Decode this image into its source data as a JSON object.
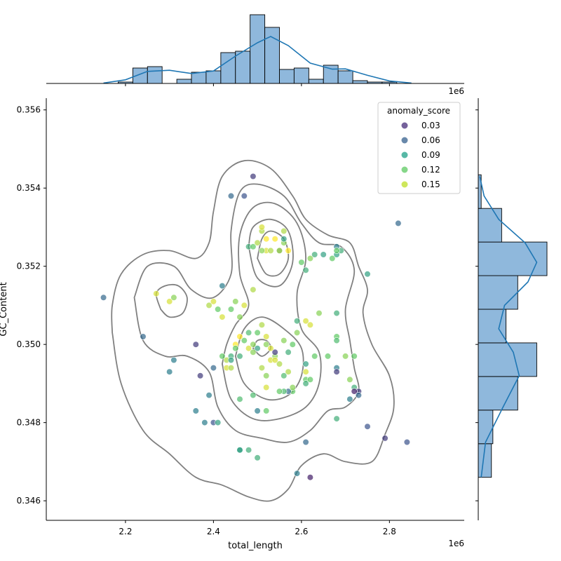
{
  "chart_data": {
    "type": "scatter",
    "title": "",
    "xlabel": "total_length",
    "ylabel": "GC_Content",
    "x_offset_label": "1e6",
    "xlim": [
      2.02,
      2.97
    ],
    "ylim": [
      0.3455,
      0.3563
    ],
    "x_ticks": [
      2.2,
      2.4,
      2.6,
      2.8
    ],
    "x_tick_labels": [
      "2.2",
      "2.4",
      "2.6",
      "2.8"
    ],
    "y_ticks": [
      0.346,
      0.348,
      0.35,
      0.352,
      0.354,
      0.356
    ],
    "y_tick_labels": [
      "0.346",
      "0.348",
      "0.350",
      "0.352",
      "0.354",
      "0.356"
    ],
    "legend": {
      "title": "anomaly_score",
      "position": "top-right",
      "entries": [
        {
          "label": "0.03",
          "color": "#472c7a"
        },
        {
          "label": "0.06",
          "color": "#35608d"
        },
        {
          "label": "0.09",
          "color": "#1fa088"
        },
        {
          "label": "0.12",
          "color": "#5ec962"
        },
        {
          "label": "0.15",
          "color": "#bddf26"
        }
      ]
    },
    "points": [
      [
        2.15,
        0.3512,
        0.06
      ],
      [
        2.27,
        0.3513,
        0.15
      ],
      [
        2.3,
        0.3511,
        0.15
      ],
      [
        2.31,
        0.3512,
        0.13
      ],
      [
        2.24,
        0.3502,
        0.06
      ],
      [
        2.31,
        0.3496,
        0.07
      ],
      [
        2.3,
        0.3493,
        0.07
      ],
      [
        2.36,
        0.35,
        0.04
      ],
      [
        2.37,
        0.3492,
        0.04
      ],
      [
        2.39,
        0.3487,
        0.07
      ],
      [
        2.4,
        0.3494,
        0.06
      ],
      [
        2.36,
        0.3483,
        0.07
      ],
      [
        2.38,
        0.348,
        0.07
      ],
      [
        2.4,
        0.348,
        0.05
      ],
      [
        2.41,
        0.348,
        0.09
      ],
      [
        2.44,
        0.3538,
        0.06
      ],
      [
        2.47,
        0.3538,
        0.05
      ],
      [
        2.49,
        0.3543,
        0.04
      ],
      [
        2.42,
        0.3515,
        0.07
      ],
      [
        2.44,
        0.3509,
        0.12
      ],
      [
        2.41,
        0.3509,
        0.12
      ],
      [
        2.39,
        0.351,
        0.14
      ],
      [
        2.4,
        0.3511,
        0.15
      ],
      [
        2.42,
        0.3507,
        0.15
      ],
      [
        2.45,
        0.3511,
        0.13
      ],
      [
        2.46,
        0.3507,
        0.13
      ],
      [
        2.47,
        0.351,
        0.15
      ],
      [
        2.49,
        0.3514,
        0.14
      ],
      [
        2.48,
        0.3525,
        0.1
      ],
      [
        2.49,
        0.3525,
        0.12
      ],
      [
        2.5,
        0.3526,
        0.14
      ],
      [
        2.51,
        0.3529,
        0.14
      ],
      [
        2.51,
        0.353,
        0.15
      ],
      [
        2.52,
        0.3527,
        0.16
      ],
      [
        2.52,
        0.3524,
        0.15
      ],
      [
        2.53,
        0.3524,
        0.14
      ],
      [
        2.54,
        0.3527,
        0.16
      ],
      [
        2.55,
        0.3524,
        0.07
      ],
      [
        2.55,
        0.3524,
        0.14
      ],
      [
        2.56,
        0.3526,
        0.13
      ],
      [
        2.56,
        0.3529,
        0.14
      ],
      [
        2.56,
        0.3527,
        0.09
      ],
      [
        2.57,
        0.3524,
        0.16
      ],
      [
        2.51,
        0.3524,
        0.13
      ],
      [
        2.6,
        0.3521,
        0.12
      ],
      [
        2.61,
        0.3519,
        0.1
      ],
      [
        2.62,
        0.3522,
        0.13
      ],
      [
        2.63,
        0.3523,
        0.1
      ],
      [
        2.65,
        0.3523,
        0.09
      ],
      [
        2.67,
        0.3522,
        0.12
      ],
      [
        2.68,
        0.3523,
        0.09
      ],
      [
        2.68,
        0.3525,
        0.07
      ],
      [
        2.69,
        0.3524,
        0.1
      ],
      [
        2.68,
        0.3524,
        0.12
      ],
      [
        2.75,
        0.3518,
        0.09
      ],
      [
        2.82,
        0.3531,
        0.06
      ],
      [
        2.64,
        0.3508,
        0.13
      ],
      [
        2.68,
        0.3508,
        0.1
      ],
      [
        2.62,
        0.3505,
        0.15
      ],
      [
        2.68,
        0.3502,
        0.12
      ],
      [
        2.68,
        0.3501,
        0.11
      ],
      [
        2.7,
        0.3497,
        0.13
      ],
      [
        2.66,
        0.3497,
        0.12
      ],
      [
        2.63,
        0.3497,
        0.12
      ],
      [
        2.61,
        0.3495,
        0.09
      ],
      [
        2.61,
        0.3491,
        0.12
      ],
      [
        2.61,
        0.3493,
        0.15
      ],
      [
        2.62,
        0.3491,
        0.12
      ],
      [
        2.61,
        0.349,
        0.1
      ],
      [
        2.57,
        0.3498,
        0.1
      ],
      [
        2.57,
        0.3493,
        0.14
      ],
      [
        2.58,
        0.3488,
        0.12
      ],
      [
        2.57,
        0.3488,
        0.06
      ],
      [
        2.56,
        0.3488,
        0.11
      ],
      [
        2.56,
        0.3492,
        0.11
      ],
      [
        2.55,
        0.3495,
        0.14
      ],
      [
        2.54,
        0.3497,
        0.13
      ],
      [
        2.54,
        0.3498,
        0.04
      ],
      [
        2.53,
        0.3499,
        0.15
      ],
      [
        2.52,
        0.35,
        0.13
      ],
      [
        2.52,
        0.3502,
        0.15
      ],
      [
        2.51,
        0.3505,
        0.14
      ],
      [
        2.5,
        0.3503,
        0.12
      ],
      [
        2.49,
        0.35,
        0.13
      ],
      [
        2.48,
        0.3503,
        0.11
      ],
      [
        2.47,
        0.3501,
        0.12
      ],
      [
        2.46,
        0.3502,
        0.16
      ],
      [
        2.45,
        0.35,
        0.16
      ],
      [
        2.44,
        0.3497,
        0.1
      ],
      [
        2.43,
        0.3496,
        0.14
      ],
      [
        2.43,
        0.3494,
        0.15
      ],
      [
        2.44,
        0.3496,
        0.09
      ],
      [
        2.42,
        0.3497,
        0.12
      ],
      [
        2.44,
        0.3494,
        0.14
      ],
      [
        2.45,
        0.3499,
        0.12
      ],
      [
        2.46,
        0.3497,
        0.1
      ],
      [
        2.48,
        0.3499,
        0.15
      ],
      [
        2.49,
        0.3498,
        0.13
      ],
      [
        2.5,
        0.3499,
        0.09
      ],
      [
        2.51,
        0.3494,
        0.14
      ],
      [
        2.52,
        0.3492,
        0.13
      ],
      [
        2.53,
        0.3496,
        0.15
      ],
      [
        2.54,
        0.3496,
        0.15
      ],
      [
        2.56,
        0.3501,
        0.13
      ],
      [
        2.58,
        0.35,
        0.12
      ],
      [
        2.59,
        0.3503,
        0.13
      ],
      [
        2.59,
        0.3506,
        0.1
      ],
      [
        2.61,
        0.3506,
        0.15
      ],
      [
        2.72,
        0.3497,
        0.12
      ],
      [
        2.71,
        0.3491,
        0.13
      ],
      [
        2.71,
        0.3486,
        0.07
      ],
      [
        2.72,
        0.3489,
        0.1
      ],
      [
        2.73,
        0.3488,
        0.04
      ],
      [
        2.72,
        0.3488,
        0.03
      ],
      [
        2.73,
        0.3487,
        0.06
      ],
      [
        2.68,
        0.3494,
        0.07
      ],
      [
        2.68,
        0.3493,
        0.04
      ],
      [
        2.68,
        0.3481,
        0.1
      ],
      [
        2.75,
        0.3479,
        0.05
      ],
      [
        2.79,
        0.3476,
        0.04
      ],
      [
        2.84,
        0.3475,
        0.05
      ],
      [
        2.61,
        0.3475,
        0.06
      ],
      [
        2.59,
        0.3467,
        0.07
      ],
      [
        2.62,
        0.3466,
        0.03
      ],
      [
        2.46,
        0.3473,
        0.09
      ],
      [
        2.46,
        0.3473,
        0.09
      ],
      [
        2.48,
        0.3473,
        0.1
      ],
      [
        2.5,
        0.3471,
        0.1
      ],
      [
        2.46,
        0.3486,
        0.11
      ],
      [
        2.5,
        0.3483,
        0.07
      ],
      [
        2.52,
        0.3483,
        0.12
      ],
      [
        2.49,
        0.3487,
        0.11
      ],
      [
        2.52,
        0.3489,
        0.15
      ],
      [
        2.55,
        0.3488,
        0.12
      ],
      [
        2.58,
        0.3489,
        0.13
      ]
    ],
    "kde_contours": [
      {
        "level": 1,
        "path": [
          [
            2.17,
            0.3503
          ],
          [
            2.19,
            0.349
          ],
          [
            2.24,
            0.3478
          ],
          [
            2.3,
            0.3472
          ],
          [
            2.36,
            0.3466
          ],
          [
            2.42,
            0.3464
          ],
          [
            2.48,
            0.3461
          ],
          [
            2.53,
            0.346
          ],
          [
            2.57,
            0.3463
          ],
          [
            2.6,
            0.3469
          ],
          [
            2.65,
            0.3472
          ],
          [
            2.7,
            0.347
          ],
          [
            2.76,
            0.347
          ],
          [
            2.79,
            0.3477
          ],
          [
            2.81,
            0.3484
          ],
          [
            2.8,
            0.3492
          ],
          [
            2.76,
            0.35
          ],
          [
            2.74,
            0.3508
          ],
          [
            2.75,
            0.3514
          ],
          [
            2.73,
            0.352
          ],
          [
            2.71,
            0.3526
          ],
          [
            2.66,
            0.3528
          ],
          [
            2.61,
            0.3532
          ],
          [
            2.58,
            0.3538
          ],
          [
            2.53,
            0.3545
          ],
          [
            2.47,
            0.3547
          ],
          [
            2.42,
            0.3543
          ],
          [
            2.4,
            0.3534
          ],
          [
            2.39,
            0.3526
          ],
          [
            2.36,
            0.3522
          ],
          [
            2.3,
            0.3524
          ],
          [
            2.24,
            0.3523
          ],
          [
            2.19,
            0.3518
          ],
          [
            2.17,
            0.351
          ],
          [
            2.17,
            0.3503
          ]
        ]
      },
      {
        "level": 2,
        "path": [
          [
            2.22,
            0.3512
          ],
          [
            2.24,
            0.3501
          ],
          [
            2.29,
            0.3497
          ],
          [
            2.34,
            0.3497
          ],
          [
            2.39,
            0.3493
          ],
          [
            2.41,
            0.3484
          ],
          [
            2.45,
            0.3478
          ],
          [
            2.51,
            0.3476
          ],
          [
            2.57,
            0.3475
          ],
          [
            2.62,
            0.3478
          ],
          [
            2.66,
            0.3483
          ],
          [
            2.7,
            0.3484
          ],
          [
            2.73,
            0.3488
          ],
          [
            2.72,
            0.3494
          ],
          [
            2.71,
            0.3501
          ],
          [
            2.7,
            0.3509
          ],
          [
            2.72,
            0.3519
          ],
          [
            2.69,
            0.3525
          ],
          [
            2.64,
            0.3526
          ],
          [
            2.6,
            0.3531
          ],
          [
            2.56,
            0.3538
          ],
          [
            2.5,
            0.3541
          ],
          [
            2.46,
            0.3539
          ],
          [
            2.44,
            0.3529
          ],
          [
            2.44,
            0.3518
          ],
          [
            2.4,
            0.3512
          ],
          [
            2.35,
            0.3514
          ],
          [
            2.31,
            0.352
          ],
          [
            2.25,
            0.352
          ],
          [
            2.22,
            0.3512
          ]
        ]
      },
      {
        "level": 3,
        "path": [
          [
            2.28,
            0.3509
          ],
          [
            2.3,
            0.3507
          ],
          [
            2.33,
            0.3508
          ],
          [
            2.34,
            0.3512
          ],
          [
            2.32,
            0.3515
          ],
          [
            2.29,
            0.3515
          ],
          [
            2.27,
            0.3513
          ],
          [
            2.28,
            0.3509
          ]
        ]
      },
      {
        "level": 3,
        "path": [
          [
            2.42,
            0.3495
          ],
          [
            2.44,
            0.3486
          ],
          [
            2.49,
            0.3481
          ],
          [
            2.55,
            0.3481
          ],
          [
            2.61,
            0.3484
          ],
          [
            2.64,
            0.349
          ],
          [
            2.64,
            0.3498
          ],
          [
            2.6,
            0.3504
          ],
          [
            2.59,
            0.3513
          ],
          [
            2.61,
            0.3522
          ],
          [
            2.59,
            0.3531
          ],
          [
            2.54,
            0.3536
          ],
          [
            2.49,
            0.3535
          ],
          [
            2.46,
            0.3528
          ],
          [
            2.46,
            0.3518
          ],
          [
            2.48,
            0.351
          ],
          [
            2.45,
            0.3505
          ],
          [
            2.43,
            0.35
          ],
          [
            2.42,
            0.3495
          ]
        ]
      },
      {
        "level": 4,
        "path": [
          [
            2.45,
            0.3497
          ],
          [
            2.47,
            0.349
          ],
          [
            2.52,
            0.3486
          ],
          [
            2.57,
            0.3487
          ],
          [
            2.6,
            0.3492
          ],
          [
            2.6,
            0.3499
          ],
          [
            2.56,
            0.3504
          ],
          [
            2.51,
            0.3507
          ],
          [
            2.47,
            0.3504
          ],
          [
            2.45,
            0.3497
          ]
        ]
      },
      {
        "level": 4,
        "path": [
          [
            2.48,
            0.3525
          ],
          [
            2.5,
            0.3517
          ],
          [
            2.55,
            0.3515
          ],
          [
            2.58,
            0.3521
          ],
          [
            2.57,
            0.3529
          ],
          [
            2.53,
            0.3532
          ],
          [
            2.49,
            0.353
          ],
          [
            2.48,
            0.3525
          ]
        ]
      },
      {
        "level": 5,
        "path": [
          [
            2.5,
            0.3522
          ],
          [
            2.52,
            0.3518
          ],
          [
            2.55,
            0.3518
          ],
          [
            2.57,
            0.3522
          ],
          [
            2.56,
            0.3527
          ],
          [
            2.53,
            0.3529
          ],
          [
            2.51,
            0.3527
          ],
          [
            2.5,
            0.3522
          ]
        ]
      },
      {
        "level": 5,
        "path": [
          [
            2.49,
            0.3499
          ],
          [
            2.51,
            0.3497
          ],
          [
            2.53,
            0.3499
          ],
          [
            2.52,
            0.3501
          ],
          [
            2.5,
            0.3501
          ],
          [
            2.49,
            0.3499
          ]
        ]
      }
    ],
    "x_histogram": {
      "bin_edges": [
        2.15,
        2.1833,
        2.2167,
        2.25,
        2.2833,
        2.3167,
        2.35,
        2.3833,
        2.4167,
        2.45,
        2.4833,
        2.5167,
        2.55,
        2.5833,
        2.6167,
        2.65,
        2.6833,
        2.7167,
        2.75,
        2.7833,
        2.8167,
        2.85
      ],
      "counts": [
        0,
        1,
        11,
        12,
        0,
        3,
        8,
        9,
        22,
        23,
        49,
        40,
        10,
        11,
        3,
        13,
        9,
        2,
        1,
        1,
        0
      ],
      "kde": [
        [
          2.15,
          0.3
        ],
        [
          2.2,
          2.6
        ],
        [
          2.25,
          8.6
        ],
        [
          2.3,
          9.4
        ],
        [
          2.35,
          7.1
        ],
        [
          2.4,
          8.9
        ],
        [
          2.45,
          19.5
        ],
        [
          2.5,
          29.0
        ],
        [
          2.53,
          33.5
        ],
        [
          2.57,
          27.0
        ],
        [
          2.62,
          14.5
        ],
        [
          2.67,
          10.2
        ],
        [
          2.7,
          10.4
        ],
        [
          2.75,
          5.8
        ],
        [
          2.8,
          1.8
        ],
        [
          2.85,
          0.3
        ]
      ]
    },
    "y_histogram": {
      "bin_edges": [
        0.3466,
        0.34746,
        0.34832,
        0.34918,
        0.35004,
        0.3509,
        0.35176,
        0.35262,
        0.35348,
        0.35434
      ],
      "counts": [
        9,
        10,
        27,
        40,
        19,
        27,
        47,
        16,
        2
      ],
      "kde": [
        [
          0.3466,
          2
        ],
        [
          0.3475,
          5
        ],
        [
          0.3484,
          17
        ],
        [
          0.3492,
          28
        ],
        [
          0.3498,
          24
        ],
        [
          0.3504,
          14
        ],
        [
          0.351,
          18
        ],
        [
          0.3516,
          34
        ],
        [
          0.3521,
          40
        ],
        [
          0.3526,
          32
        ],
        [
          0.3532,
          14
        ],
        [
          0.3538,
          4
        ],
        [
          0.3543,
          1
        ]
      ]
    }
  }
}
